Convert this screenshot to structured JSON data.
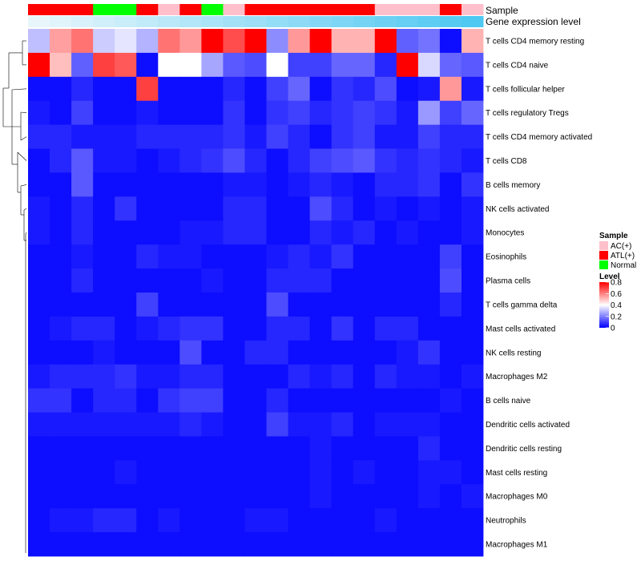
{
  "chart_data": {
    "type": "heatmap",
    "title": "",
    "rows": [
      "T cells CD4 memory resting",
      "T cells CD4 naive",
      "T cells follicular helper",
      "T cells regulatory  Tregs",
      "T cells CD4 memory activated",
      "T cells CD8",
      "B cells memory",
      "NK cells activated",
      "Monocytes",
      "Eosinophils",
      "Plasma cells",
      "T cells gamma delta",
      "Mast cells activated",
      "NK cells resting",
      "Macrophages M2",
      "B cells naive",
      "Dendritic cells activated",
      "Dendritic cells resting",
      "Mast cells resting",
      "Macrophages M0",
      "Neutrophils",
      "Macrophages M1"
    ],
    "column_annotations": {
      "sample": {
        "label": "Sample",
        "values": [
          "ATL(+)",
          "ATL(+)",
          "ATL(+)",
          "Normal",
          "Normal",
          "ATL(+)",
          "AC(+)",
          "ATL(+)",
          "Normal",
          "AC(+)",
          "ATL(+)",
          "ATL(+)",
          "ATL(+)",
          "ATL(+)",
          "ATL(+)",
          "ATL(+)",
          "AC(+)",
          "AC(+)",
          "AC(+)",
          "ATL(+)",
          "AC(+)"
        ]
      },
      "gene_expression": {
        "label": "Gene expression level",
        "values": [
          0.0,
          0.05,
          0.1,
          0.15,
          0.2,
          0.25,
          0.3,
          0.35,
          0.4,
          0.45,
          0.5,
          0.55,
          0.6,
          0.65,
          0.7,
          0.75,
          0.8,
          0.85,
          0.9,
          0.95,
          1.0
        ]
      }
    },
    "values": [
      [
        0.3,
        0.55,
        0.62,
        0.32,
        0.36,
        0.28,
        0.62,
        0.56,
        0.8,
        0.68,
        0.8,
        0.22,
        0.56,
        0.8,
        0.52,
        0.52,
        0.8,
        0.15,
        0.18,
        0.02,
        0.52
      ],
      [
        0.8,
        0.5,
        0.15,
        0.7,
        0.66,
        0.02,
        0.4,
        0.4,
        0.26,
        0.14,
        0.12,
        0.4,
        0.1,
        0.1,
        0.16,
        0.16,
        0.06,
        0.8,
        0.34,
        0.16,
        0.14
      ],
      [
        0.02,
        0.02,
        0.06,
        0.02,
        0.02,
        0.7,
        0.02,
        0.02,
        0.02,
        0.06,
        0.02,
        0.1,
        0.16,
        0.02,
        0.08,
        0.06,
        0.12,
        0.02,
        0.04,
        0.56,
        0.04
      ],
      [
        0.04,
        0.02,
        0.1,
        0.02,
        0.02,
        0.04,
        0.02,
        0.02,
        0.02,
        0.08,
        0.02,
        0.08,
        0.1,
        0.06,
        0.08,
        0.1,
        0.08,
        0.04,
        0.24,
        0.1,
        0.16
      ],
      [
        0.06,
        0.06,
        0.04,
        0.04,
        0.04,
        0.06,
        0.06,
        0.06,
        0.06,
        0.08,
        0.04,
        0.1,
        0.06,
        0.02,
        0.08,
        0.1,
        0.04,
        0.04,
        0.1,
        0.06,
        0.06
      ],
      [
        0.02,
        0.06,
        0.14,
        0.04,
        0.04,
        0.02,
        0.04,
        0.06,
        0.08,
        0.12,
        0.06,
        0.02,
        0.06,
        0.1,
        0.12,
        0.14,
        0.08,
        0.06,
        0.08,
        0.06,
        0.04
      ],
      [
        0.02,
        0.02,
        0.14,
        0.02,
        0.02,
        0.02,
        0.02,
        0.02,
        0.02,
        0.04,
        0.04,
        0.02,
        0.04,
        0.06,
        0.04,
        0.02,
        0.06,
        0.06,
        0.08,
        0.02,
        0.08
      ],
      [
        0.04,
        0.02,
        0.06,
        0.02,
        0.08,
        0.02,
        0.02,
        0.02,
        0.02,
        0.06,
        0.06,
        0.02,
        0.02,
        0.12,
        0.06,
        0.02,
        0.04,
        0.02,
        0.04,
        0.02,
        0.04
      ],
      [
        0.04,
        0.02,
        0.06,
        0.02,
        0.02,
        0.02,
        0.02,
        0.04,
        0.04,
        0.06,
        0.06,
        0.02,
        0.02,
        0.06,
        0.04,
        0.06,
        0.02,
        0.04,
        0.02,
        0.02,
        0.04
      ],
      [
        0.02,
        0.02,
        0.04,
        0.02,
        0.02,
        0.06,
        0.04,
        0.04,
        0.02,
        0.02,
        0.02,
        0.04,
        0.06,
        0.04,
        0.08,
        0.02,
        0.02,
        0.02,
        0.02,
        0.1,
        0.02
      ],
      [
        0.02,
        0.02,
        0.06,
        0.02,
        0.02,
        0.02,
        0.02,
        0.02,
        0.04,
        0.02,
        0.02,
        0.06,
        0.06,
        0.06,
        0.02,
        0.02,
        0.02,
        0.02,
        0.02,
        0.12,
        0.02
      ],
      [
        0.02,
        0.02,
        0.02,
        0.02,
        0.02,
        0.1,
        0.02,
        0.02,
        0.02,
        0.02,
        0.02,
        0.12,
        0.02,
        0.02,
        0.02,
        0.02,
        0.02,
        0.02,
        0.02,
        0.06,
        0.02
      ],
      [
        0.02,
        0.04,
        0.06,
        0.06,
        0.02,
        0.04,
        0.06,
        0.08,
        0.08,
        0.02,
        0.02,
        0.06,
        0.06,
        0.02,
        0.08,
        0.02,
        0.06,
        0.06,
        0.02,
        0.02,
        0.02
      ],
      [
        0.02,
        0.02,
        0.02,
        0.04,
        0.02,
        0.02,
        0.02,
        0.12,
        0.02,
        0.02,
        0.06,
        0.06,
        0.02,
        0.02,
        0.02,
        0.02,
        0.02,
        0.04,
        0.08,
        0.02,
        0.02
      ],
      [
        0.04,
        0.06,
        0.06,
        0.06,
        0.08,
        0.04,
        0.04,
        0.06,
        0.06,
        0.02,
        0.02,
        0.02,
        0.06,
        0.04,
        0.06,
        0.02,
        0.06,
        0.04,
        0.04,
        0.02,
        0.04
      ],
      [
        0.08,
        0.08,
        0.02,
        0.06,
        0.06,
        0.02,
        0.08,
        0.1,
        0.1,
        0.02,
        0.02,
        0.06,
        0.02,
        0.02,
        0.02,
        0.02,
        0.02,
        0.02,
        0.02,
        0.04,
        0.02
      ],
      [
        0.04,
        0.04,
        0.04,
        0.04,
        0.04,
        0.04,
        0.04,
        0.06,
        0.04,
        0.02,
        0.02,
        0.1,
        0.04,
        0.04,
        0.06,
        0.02,
        0.04,
        0.04,
        0.04,
        0.02,
        0.02
      ],
      [
        0.02,
        0.02,
        0.02,
        0.02,
        0.02,
        0.02,
        0.02,
        0.02,
        0.02,
        0.02,
        0.02,
        0.02,
        0.02,
        0.04,
        0.02,
        0.02,
        0.02,
        0.02,
        0.06,
        0.02,
        0.02
      ],
      [
        0.02,
        0.02,
        0.02,
        0.02,
        0.04,
        0.02,
        0.02,
        0.02,
        0.02,
        0.02,
        0.02,
        0.02,
        0.02,
        0.04,
        0.02,
        0.04,
        0.02,
        0.02,
        0.04,
        0.04,
        0.02
      ],
      [
        0.02,
        0.02,
        0.02,
        0.02,
        0.02,
        0.02,
        0.02,
        0.02,
        0.02,
        0.02,
        0.02,
        0.02,
        0.02,
        0.04,
        0.02,
        0.02,
        0.02,
        0.02,
        0.04,
        0.02,
        0.04
      ],
      [
        0.02,
        0.04,
        0.04,
        0.06,
        0.06,
        0.02,
        0.04,
        0.02,
        0.02,
        0.02,
        0.04,
        0.04,
        0.02,
        0.02,
        0.02,
        0.02,
        0.04,
        0.02,
        0.02,
        0.02,
        0.02
      ],
      [
        0.02,
        0.02,
        0.02,
        0.02,
        0.02,
        0.02,
        0.02,
        0.02,
        0.02,
        0.02,
        0.02,
        0.02,
        0.02,
        0.02,
        0.02,
        0.02,
        0.02,
        0.02,
        0.02,
        0.02,
        0.02
      ]
    ],
    "color_scale": {
      "low": "#0000FF",
      "mid": "#FFFFFF",
      "high": "#FF0000",
      "min": 0,
      "mid_value": 0.4,
      "max": 0.8
    },
    "legend": {
      "position": "right",
      "sample": {
        "title": "Sample",
        "items": [
          {
            "label": "AC(+)",
            "color": "#FFC0CB"
          },
          {
            "label": "ATL(+)",
            "color": "#FF0000"
          },
          {
            "label": "Normal",
            "color": "#00FF00"
          }
        ]
      },
      "level": {
        "title": "Level",
        "ticks": [
          "0.8",
          "0.6",
          "0.4",
          "0.2",
          "0"
        ],
        "tick_values": [
          0.8,
          0.6,
          0.4,
          0.2,
          0
        ]
      }
    },
    "annotation_colors": {
      "ATL(+)": "#FF0000",
      "AC(+)": "#FFC0CB",
      "Normal": "#00FF00",
      "gene_low": "#E8F6FB",
      "gene_high": "#4FC8F2"
    }
  }
}
